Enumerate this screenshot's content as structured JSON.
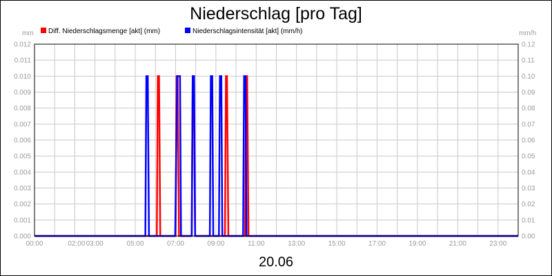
{
  "chart_data": {
    "type": "line",
    "title": "Niederschlag [pro Tag]",
    "date_label": "20.06",
    "left_unit": "mm",
    "right_unit": "mm/h",
    "x_ticks": [
      "00:00",
      "02:00",
      "03:00",
      "05:00",
      "07:00",
      "09:00",
      "11:00",
      "13:00",
      "15:00",
      "17:00",
      "19:00",
      "21:00",
      "23:00"
    ],
    "x_tick_hours": [
      0,
      2,
      3,
      5,
      7,
      9,
      11,
      13,
      15,
      17,
      19,
      21,
      23
    ],
    "xlim_hours": [
      0,
      24
    ],
    "y_left_ticks": [
      "0.000",
      "0.001",
      "0.002",
      "0.003",
      "0.004",
      "0.005",
      "0.006",
      "0.007",
      "0.008",
      "0.009",
      "0.010",
      "0.011",
      "0.012"
    ],
    "y_left_lim": [
      0,
      0.012
    ],
    "y_right_ticks": [
      "0.00",
      "0.01",
      "0.02",
      "0.03",
      "0.04",
      "0.05",
      "0.06",
      "0.07",
      "0.08",
      "0.09",
      "0.10",
      "0.11",
      "0.12"
    ],
    "y_right_lim": [
      0,
      0.12
    ],
    "grid": true,
    "series": [
      {
        "name": "Diff. Niederschlagsmenge [akt] (mm)",
        "color": "#ff0000",
        "axis": "left",
        "x_hours": [
          0,
          6.07,
          6.12,
          6.18,
          6.24,
          7.0,
          7.05,
          7.1,
          7.17,
          7.8,
          7.85,
          7.9,
          7.97,
          9.45,
          9.5,
          9.55,
          9.62,
          10.45,
          10.5,
          10.55,
          10.62,
          24
        ],
        "values": [
          0,
          0,
          0.01,
          0.01,
          0,
          0,
          0.01,
          0.01,
          0,
          0,
          0.01,
          0.01,
          0,
          0,
          0.01,
          0.01,
          0,
          0,
          0.01,
          0.01,
          0,
          0
        ]
      },
      {
        "name": "Niederschlagsintensität [akt] (mm/h)",
        "color": "#0000ff",
        "axis": "right",
        "x_hours": [
          0,
          5.5,
          5.55,
          5.62,
          5.68,
          6.98,
          7.08,
          7.12,
          7.22,
          7.27,
          7.8,
          7.85,
          7.92,
          7.97,
          8.7,
          8.75,
          8.82,
          8.87,
          9.15,
          9.2,
          9.27,
          9.32,
          10.35,
          10.4,
          10.47,
          10.52,
          24
        ],
        "values": [
          0,
          0,
          0.1,
          0.1,
          0,
          0,
          0.1,
          0.1,
          0.1,
          0,
          0,
          0.1,
          0.1,
          0,
          0,
          0.1,
          0.1,
          0,
          0,
          0.1,
          0.1,
          0,
          0,
          0.1,
          0.1,
          0,
          0
        ]
      }
    ]
  }
}
